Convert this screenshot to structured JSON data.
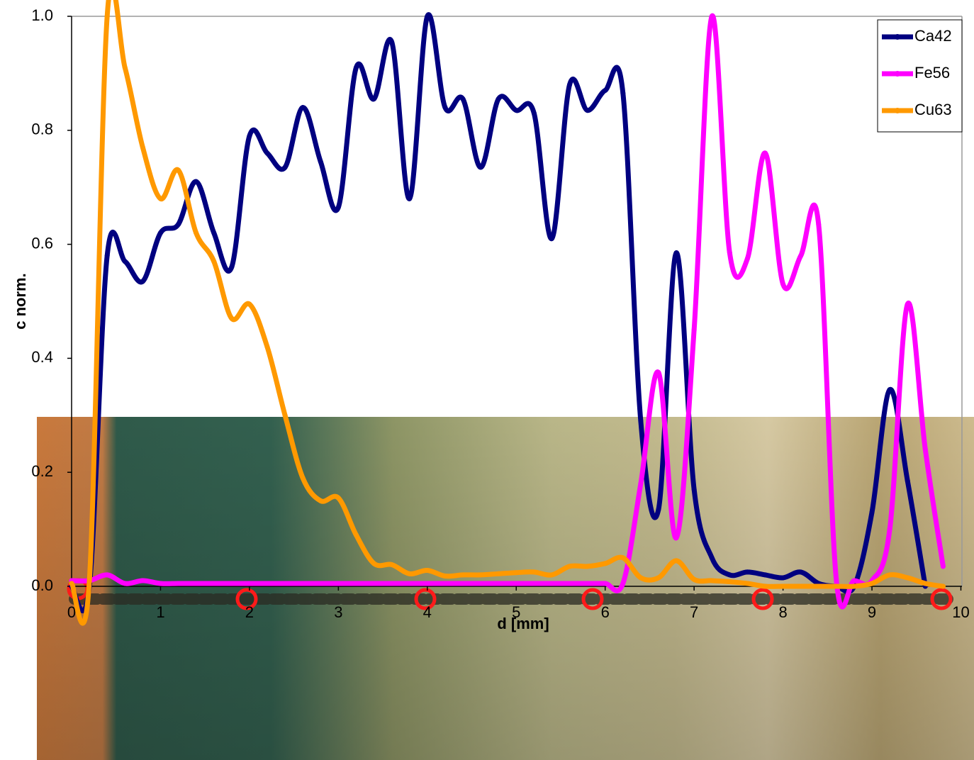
{
  "chart_data": {
    "type": "line",
    "x_label": "d [mm]",
    "y_label": "c norm.",
    "x": [
      0,
      0.2,
      0.4,
      0.6,
      0.8,
      1.0,
      1.2,
      1.4,
      1.6,
      1.8,
      2.0,
      2.2,
      2.4,
      2.6,
      2.8,
      3.0,
      3.2,
      3.4,
      3.6,
      3.8,
      4.0,
      4.2,
      4.4,
      4.6,
      4.8,
      5.0,
      5.2,
      5.4,
      5.6,
      5.8,
      6.0,
      6.2,
      6.4,
      6.6,
      6.8,
      7.0,
      7.2,
      7.4,
      7.6,
      7.8,
      8.0,
      8.2,
      8.4,
      8.6,
      8.8,
      9.0,
      9.2,
      9.4,
      9.6,
      9.8
    ],
    "series": [
      {
        "name": "Ca42",
        "color": "#000080",
        "values": [
          0.0,
          0.0,
          0.58,
          0.57,
          0.535,
          0.62,
          0.635,
          0.71,
          0.62,
          0.56,
          0.79,
          0.76,
          0.735,
          0.84,
          0.745,
          0.665,
          0.91,
          0.855,
          0.955,
          0.68,
          1.0,
          0.84,
          0.855,
          0.735,
          0.855,
          0.835,
          0.83,
          0.61,
          0.88,
          0.835,
          0.87,
          0.865,
          0.29,
          0.135,
          0.585,
          0.17,
          0.05,
          0.02,
          0.025,
          0.02,
          0.015,
          0.025,
          0.005,
          0.0,
          0.0,
          0.13,
          0.345,
          0.185,
          0.0,
          null
        ]
      },
      {
        "name": "Fe56",
        "color": "#ff00ff",
        "values": [
          0.01,
          0.01,
          0.02,
          0.005,
          0.01,
          0.005,
          0.005,
          0.005,
          0.005,
          0.005,
          0.005,
          0.005,
          0.005,
          0.005,
          0.005,
          0.005,
          0.005,
          0.005,
          0.005,
          0.005,
          0.005,
          0.005,
          0.005,
          0.005,
          0.005,
          0.005,
          0.005,
          0.005,
          0.005,
          0.005,
          0.005,
          0.005,
          0.18,
          0.375,
          0.085,
          0.45,
          1.0,
          0.585,
          0.575,
          0.76,
          0.53,
          0.58,
          0.635,
          0.01,
          0.01,
          0.01,
          0.1,
          0.495,
          0.24,
          0.035
        ]
      },
      {
        "name": "Cu63",
        "color": "#ff9900",
        "values": [
          0.005,
          0.01,
          1.0,
          0.91,
          0.77,
          0.68,
          0.73,
          0.62,
          0.57,
          0.47,
          0.495,
          0.42,
          0.3,
          0.19,
          0.15,
          0.155,
          0.09,
          0.04,
          0.038,
          0.022,
          0.028,
          0.018,
          0.02,
          0.02,
          0.022,
          0.024,
          0.025,
          0.02,
          0.035,
          0.035,
          0.04,
          0.05,
          0.015,
          0.015,
          0.045,
          0.012,
          0.01,
          0.008,
          0.005,
          0.0,
          0.0,
          0.0,
          0.0,
          0.0,
          0.0,
          0.005,
          0.02,
          0.015,
          0.005,
          0.0
        ]
      }
    ],
    "xlim": [
      0,
      10
    ],
    "xticks": [
      0,
      1,
      2,
      3,
      4,
      5,
      6,
      7,
      8,
      9,
      10
    ],
    "ylim": [
      0,
      1
    ],
    "yticks": [
      {
        "value": 0,
        "label": "0.0"
      },
      0.2,
      0.4,
      0.6,
      0.8,
      {
        "value": 1,
        "label": "1.0"
      }
    ],
    "legend": "top-right"
  }
}
